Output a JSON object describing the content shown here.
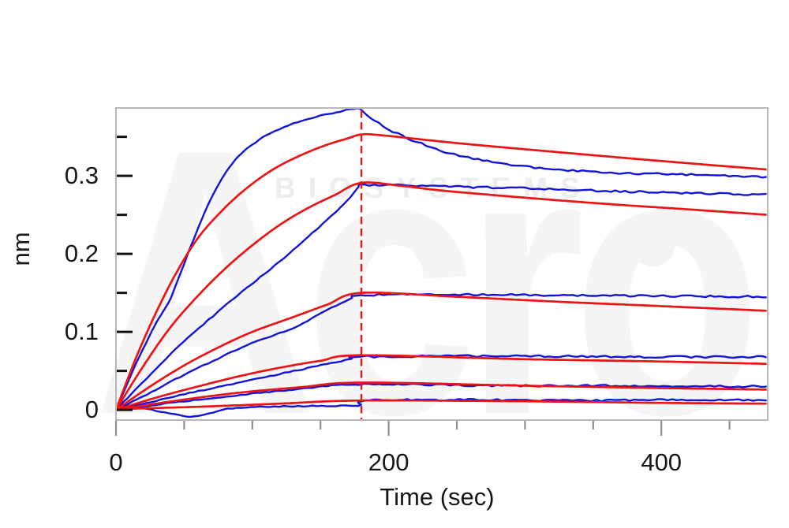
{
  "watermark": {
    "brand": "Acro",
    "subtext": "BIOSYSTEMS"
  },
  "chart_data": {
    "type": "line",
    "title": "",
    "xlabel": "Time (sec)",
    "ylabel": "nm",
    "xlim": [
      0,
      478
    ],
    "ylim": [
      -0.013,
      0.387
    ],
    "grid": false,
    "legend": null,
    "x_major_ticks": [
      0,
      200,
      400
    ],
    "x_tick_labels": [
      "0",
      "200",
      "400"
    ],
    "x_minor_ticks": [
      50,
      100,
      150,
      250,
      300,
      350,
      450
    ],
    "y_major_ticks": [
      0,
      0.1,
      0.2,
      0.3
    ],
    "y_tick_labels": [
      "0",
      "0.1",
      "0.2",
      "0.3"
    ],
    "y_minor_ticks": [
      0.05,
      0.15,
      0.25,
      0.35
    ],
    "phase_divider_x": 180,
    "colors": {
      "data_blue": "#1414d8",
      "fit_red": "#ec1414",
      "divider": "#ea1515",
      "axis_frame": "#a6a6a6",
      "y_tick": "#111111",
      "x_tick": "#8f8f8f"
    },
    "series": [
      {
        "name": "curve-1",
        "data_blue": [
          [
            0,
            0
          ],
          [
            15,
            0.06
          ],
          [
            30,
            0.113
          ],
          [
            40,
            0.143
          ],
          [
            55,
            0.21
          ],
          [
            70,
            0.272
          ],
          [
            85,
            0.315
          ],
          [
            100,
            0.34
          ],
          [
            115,
            0.356
          ],
          [
            130,
            0.367
          ],
          [
            145,
            0.375
          ],
          [
            160,
            0.381
          ],
          [
            172,
            0.385
          ],
          [
            178,
            0.386
          ],
          [
            183,
            0.38
          ],
          [
            190,
            0.371
          ],
          [
            200,
            0.36
          ],
          [
            210,
            0.351
          ],
          [
            220,
            0.344
          ],
          [
            232,
            0.336
          ],
          [
            245,
            0.329
          ],
          [
            260,
            0.323
          ],
          [
            275,
            0.318
          ],
          [
            290,
            0.314
          ],
          [
            310,
            0.31
          ],
          [
            330,
            0.307
          ],
          [
            355,
            0.305
          ],
          [
            380,
            0.303
          ],
          [
            410,
            0.302
          ],
          [
            445,
            0.3
          ],
          [
            478,
            0.298
          ]
        ],
        "fit_red": [
          [
            0,
            0
          ],
          [
            15,
            0.068
          ],
          [
            30,
            0.127
          ],
          [
            45,
            0.178
          ],
          [
            60,
            0.22
          ],
          [
            77,
            0.254
          ],
          [
            95,
            0.283
          ],
          [
            115,
            0.308
          ],
          [
            135,
            0.326
          ],
          [
            155,
            0.34
          ],
          [
            170,
            0.348
          ],
          [
            180,
            0.353
          ],
          [
            195,
            0.352
          ],
          [
            250,
            0.342
          ],
          [
            320,
            0.331
          ],
          [
            400,
            0.319
          ],
          [
            478,
            0.308
          ]
        ]
      },
      {
        "name": "curve-2",
        "data_blue": [
          [
            0,
            0
          ],
          [
            25,
            0.045
          ],
          [
            50,
            0.088
          ],
          [
            75,
            0.126
          ],
          [
            95,
            0.155
          ],
          [
            120,
            0.19
          ],
          [
            145,
            0.228
          ],
          [
            165,
            0.26
          ],
          [
            178,
            0.285
          ],
          [
            180,
            0.288
          ],
          [
            210,
            0.288
          ],
          [
            250,
            0.286
          ],
          [
            300,
            0.284
          ],
          [
            350,
            0.281
          ],
          [
            400,
            0.279
          ],
          [
            440,
            0.277
          ],
          [
            478,
            0.276
          ]
        ],
        "fit_red": [
          [
            0,
            0
          ],
          [
            20,
            0.056
          ],
          [
            40,
            0.106
          ],
          [
            60,
            0.146
          ],
          [
            80,
            0.181
          ],
          [
            100,
            0.211
          ],
          [
            120,
            0.237
          ],
          [
            140,
            0.258
          ],
          [
            160,
            0.275
          ],
          [
            180,
            0.291
          ],
          [
            210,
            0.287
          ],
          [
            240,
            0.281
          ],
          [
            300,
            0.272
          ],
          [
            360,
            0.264
          ],
          [
            420,
            0.257
          ],
          [
            478,
            0.25
          ]
        ]
      },
      {
        "name": "curve-3",
        "data_blue": [
          [
            0,
            0
          ],
          [
            25,
            0.022
          ],
          [
            50,
            0.045
          ],
          [
            75,
            0.066
          ],
          [
            100,
            0.086
          ],
          [
            130,
            0.105
          ],
          [
            155,
            0.128
          ],
          [
            172,
            0.142
          ],
          [
            180,
            0.147
          ],
          [
            250,
            0.148
          ],
          [
            320,
            0.147
          ],
          [
            400,
            0.146
          ],
          [
            478,
            0.145
          ]
        ],
        "fit_red": [
          [
            0,
            0
          ],
          [
            25,
            0.03
          ],
          [
            50,
            0.057
          ],
          [
            75,
            0.08
          ],
          [
            100,
            0.1
          ],
          [
            130,
            0.119
          ],
          [
            155,
            0.135
          ],
          [
            180,
            0.15
          ],
          [
            250,
            0.145
          ],
          [
            320,
            0.139
          ],
          [
            400,
            0.133
          ],
          [
            478,
            0.127
          ]
        ]
      },
      {
        "name": "curve-4",
        "data_blue": [
          [
            0,
            0
          ],
          [
            30,
            0.012
          ],
          [
            60,
            0.024
          ],
          [
            90,
            0.035
          ],
          [
            120,
            0.046
          ],
          [
            150,
            0.057
          ],
          [
            172,
            0.065
          ],
          [
            180,
            0.068
          ],
          [
            280,
            0.069
          ],
          [
            380,
            0.068
          ],
          [
            478,
            0.068
          ]
        ],
        "fit_red": [
          [
            0,
            0
          ],
          [
            30,
            0.016
          ],
          [
            60,
            0.03
          ],
          [
            90,
            0.043
          ],
          [
            120,
            0.054
          ],
          [
            150,
            0.063
          ],
          [
            180,
            0.07
          ],
          [
            300,
            0.065
          ],
          [
            400,
            0.062
          ],
          [
            478,
            0.059
          ]
        ]
      },
      {
        "name": "curve-5",
        "data_blue": [
          [
            0,
            0
          ],
          [
            45,
            0.01
          ],
          [
            90,
            0.019
          ],
          [
            135,
            0.027
          ],
          [
            180,
            0.033
          ],
          [
            280,
            0.031
          ],
          [
            380,
            0.031
          ],
          [
            478,
            0.03
          ]
        ],
        "fit_red": [
          [
            0,
            0
          ],
          [
            45,
            0.012
          ],
          [
            90,
            0.022
          ],
          [
            135,
            0.029
          ],
          [
            180,
            0.035
          ],
          [
            300,
            0.031
          ],
          [
            400,
            0.028
          ],
          [
            478,
            0.026
          ]
        ]
      },
      {
        "name": "curve-6",
        "data_blue": [
          [
            0,
            0
          ],
          [
            15,
            0.003
          ],
          [
            35,
            -0.003
          ],
          [
            55,
            -0.009
          ],
          [
            70,
            -0.004
          ],
          [
            85,
            0.002
          ],
          [
            110,
            0.004
          ],
          [
            140,
            0.005
          ],
          [
            178,
            0.006
          ],
          [
            183,
            0.012
          ],
          [
            260,
            0.013
          ],
          [
            340,
            0.012
          ],
          [
            420,
            0.013
          ],
          [
            478,
            0.012
          ]
        ],
        "fit_red": [
          [
            0,
            0.001
          ],
          [
            60,
            0.004
          ],
          [
            120,
            0.008
          ],
          [
            180,
            0.012
          ],
          [
            300,
            0.011
          ],
          [
            400,
            0.009
          ],
          [
            478,
            0.008
          ]
        ]
      }
    ]
  }
}
